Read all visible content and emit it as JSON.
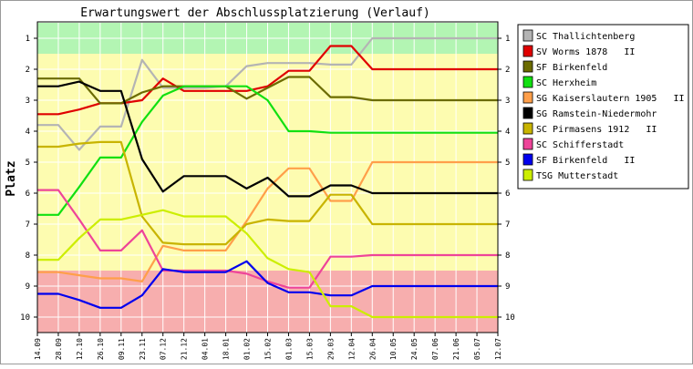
{
  "chart_data": {
    "type": "line",
    "title": "Erwartungswert der Abschlussplatzierung (Verlauf)",
    "ylabel": "Platz",
    "xlabel": "",
    "ylim": [
      1,
      10
    ],
    "y_inverted": true,
    "yticks": [
      "1",
      "2",
      "3",
      "4",
      "5",
      "6",
      "7",
      "8",
      "9",
      "10"
    ],
    "x": [
      "14.09",
      "28.09",
      "12.10",
      "26.10",
      "09.11",
      "23.11",
      "07.12",
      "21.12",
      "04.01",
      "18.01",
      "01.02",
      "15.02",
      "01.03",
      "15.03",
      "29.03",
      "12.04",
      "26.04",
      "10.05",
      "24.05",
      "07.06",
      "21.06",
      "05.07",
      "12.07"
    ],
    "grid": true,
    "legend_position": "right",
    "zones": [
      {
        "from": 0.5,
        "to": 1.5,
        "color": "#b3f5b3"
      },
      {
        "from": 1.5,
        "to": 8.5,
        "color": "#fdfcb0"
      },
      {
        "from": 8.5,
        "to": 10.5,
        "color": "#f7aeae"
      }
    ],
    "series": [
      {
        "name": "SC Thallichtenberg",
        "color": "#b4b4b4",
        "values": [
          3.8,
          3.8,
          4.6,
          3.85,
          3.85,
          1.7,
          2.6,
          2.6,
          2.6,
          2.55,
          1.9,
          1.8,
          1.8,
          1.8,
          1.85,
          1.85,
          1.0,
          1.0,
          1.0,
          1.0,
          1.0,
          1.0,
          1.0
        ]
      },
      {
        "name": "SV Worms 1878   II",
        "color": "#e00000",
        "values": [
          3.45,
          3.45,
          3.3,
          3.1,
          3.1,
          3.0,
          2.3,
          2.7,
          2.7,
          2.7,
          2.7,
          2.55,
          2.05,
          2.05,
          1.25,
          1.25,
          2.0,
          2.0,
          2.0,
          2.0,
          2.0,
          2.0,
          2.0
        ]
      },
      {
        "name": "SF Birkenfeld",
        "color": "#6b6b00",
        "values": [
          2.3,
          2.3,
          2.3,
          3.1,
          3.1,
          2.75,
          2.55,
          2.55,
          2.55,
          2.55,
          2.95,
          2.6,
          2.25,
          2.25,
          2.9,
          2.9,
          3.0,
          3.0,
          3.0,
          3.0,
          3.0,
          3.0,
          3.0
        ]
      },
      {
        "name": "SC Herxheim",
        "color": "#11e011",
        "values": [
          6.7,
          6.7,
          5.8,
          4.85,
          4.85,
          3.7,
          2.85,
          2.55,
          2.55,
          2.55,
          2.55,
          3.0,
          4.0,
          4.0,
          4.05,
          4.05,
          4.05,
          4.05,
          4.05,
          4.05,
          4.05,
          4.05,
          4.05
        ]
      },
      {
        "name": "SG Kaiserslautern 1905   II",
        "color": "#ff9f4a",
        "values": [
          8.55,
          8.55,
          8.65,
          8.75,
          8.75,
          8.85,
          7.7,
          7.85,
          7.85,
          7.85,
          6.9,
          5.85,
          5.2,
          5.2,
          6.25,
          6.25,
          5.0,
          5.0,
          5.0,
          5.0,
          5.0,
          5.0,
          5.0
        ]
      },
      {
        "name": "SG Ramstein-Niedermohr",
        "color": "#000000",
        "values": [
          2.55,
          2.55,
          2.4,
          2.7,
          2.7,
          4.9,
          5.95,
          5.45,
          5.45,
          5.45,
          5.85,
          5.5,
          6.1,
          6.1,
          5.75,
          5.75,
          6.0,
          6.0,
          6.0,
          6.0,
          6.0,
          6.0,
          6.0
        ]
      },
      {
        "name": "SC Pirmasens 1912   II",
        "color": "#c8b400",
        "values": [
          4.5,
          4.5,
          4.4,
          4.35,
          4.35,
          6.75,
          7.6,
          7.65,
          7.65,
          7.65,
          7.0,
          6.85,
          6.9,
          6.9,
          6.05,
          6.05,
          7.0,
          7.0,
          7.0,
          7.0,
          7.0,
          7.0,
          7.0
        ]
      },
      {
        "name": "SC Schifferstadt",
        "color": "#ee4499",
        "values": [
          5.9,
          5.9,
          6.85,
          7.85,
          7.85,
          7.2,
          8.5,
          8.5,
          8.5,
          8.5,
          8.6,
          8.85,
          9.05,
          9.05,
          8.05,
          8.05,
          8.0,
          8.0,
          8.0,
          8.0,
          8.0,
          8.0,
          8.0
        ]
      },
      {
        "name": "SF Birkenfeld   II",
        "color": "#0000ee",
        "values": [
          9.25,
          9.25,
          9.45,
          9.7,
          9.7,
          9.3,
          8.45,
          8.55,
          8.55,
          8.55,
          8.2,
          8.9,
          9.2,
          9.2,
          9.3,
          9.3,
          9.0,
          9.0,
          9.0,
          9.0,
          9.0,
          9.0,
          9.0
        ]
      },
      {
        "name": "TSG Mutterstadt",
        "color": "#ccee00",
        "values": [
          8.15,
          8.15,
          7.45,
          6.85,
          6.85,
          6.7,
          6.55,
          6.75,
          6.75,
          6.75,
          7.3,
          8.1,
          8.45,
          8.55,
          9.65,
          9.65,
          10.0,
          10.0,
          10.0,
          10.0,
          10.0,
          10.0,
          10.0
        ]
      }
    ]
  }
}
